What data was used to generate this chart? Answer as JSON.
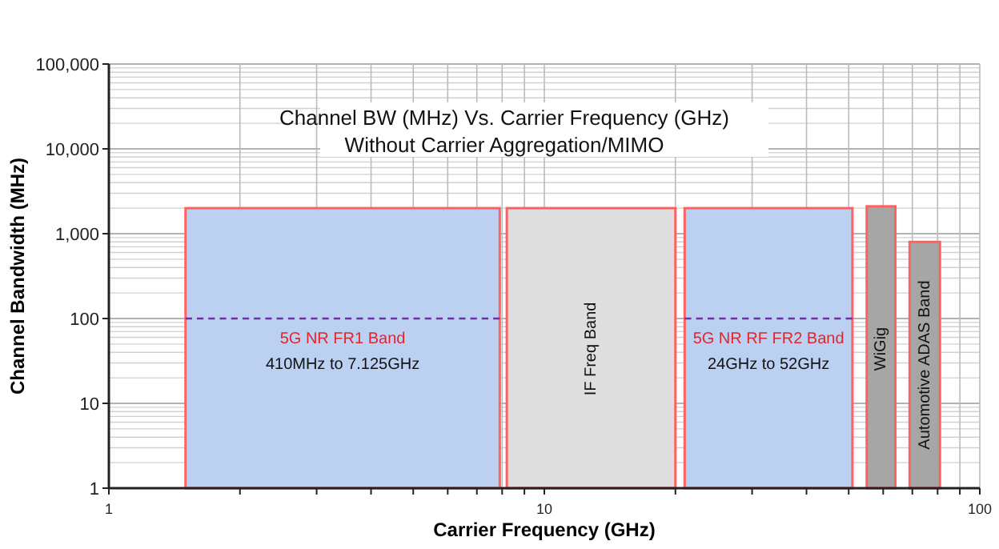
{
  "chart_data": {
    "type": "histogram",
    "title": "Channel BW (MHz) Vs. Carrier Frequency (GHz)",
    "subtitle": "Without Carrier Aggregation/MIMO",
    "xlabel": "Carrier Frequency (GHz)",
    "ylabel": "Channel Bandwidth (MHz)",
    "log": "xy",
    "grid": true,
    "xlim": [
      1,
      100
    ],
    "xticks": [
      1,
      {
        "value": 2,
        "label": null
      },
      {
        "value": 3,
        "label": null
      },
      {
        "value": 4,
        "label": null
      },
      {
        "value": 5,
        "label": null
      },
      {
        "value": 6,
        "label": null
      },
      {
        "value": 7,
        "label": null
      },
      {
        "value": 8,
        "label": null
      },
      {
        "value": 9,
        "label": null
      },
      10,
      {
        "value": 20,
        "label": null
      },
      {
        "value": 30,
        "label": null
      },
      {
        "value": 40,
        "label": null
      },
      {
        "value": 50,
        "label": null
      },
      {
        "value": 60,
        "label": null
      },
      {
        "value": 70,
        "label": null
      },
      {
        "value": 80,
        "label": null
      },
      {
        "value": 90,
        "label": null
      },
      100
    ],
    "ylim": [
      1,
      100000
    ],
    "yticks": [
      1,
      {
        "value": 2,
        "label": null
      },
      {
        "value": 3,
        "label": null
      },
      {
        "value": 4,
        "label": null
      },
      {
        "value": 5,
        "label": null
      },
      {
        "value": 6,
        "label": null
      },
      {
        "value": 7,
        "label": null
      },
      {
        "value": 8,
        "label": null
      },
      {
        "value": 9,
        "label": null
      },
      10,
      {
        "value": 20,
        "label": null
      },
      {
        "value": 30,
        "label": null
      },
      {
        "value": 40,
        "label": null
      },
      {
        "value": 50,
        "label": null
      },
      {
        "value": 60,
        "label": null
      },
      {
        "value": 70,
        "label": null
      },
      {
        "value": 80,
        "label": null
      },
      {
        "value": 90,
        "label": null
      },
      100,
      {
        "value": 200,
        "label": null
      },
      {
        "value": 300,
        "label": null
      },
      {
        "value": 400,
        "label": null
      },
      {
        "value": 500,
        "label": null
      },
      {
        "value": 600,
        "label": null
      },
      {
        "value": 700,
        "label": null
      },
      {
        "value": 800,
        "label": null
      },
      {
        "value": 900,
        "label": null
      },
      {
        "value": 1000,
        "label": "1,000"
      },
      {
        "value": 2000,
        "label": null
      },
      {
        "value": 3000,
        "label": null
      },
      {
        "value": 4000,
        "label": null
      },
      {
        "value": 5000,
        "label": null
      },
      {
        "value": 6000,
        "label": null
      },
      {
        "value": 7000,
        "label": null
      },
      {
        "value": 8000,
        "label": null
      },
      {
        "value": 9000,
        "label": null
      },
      {
        "value": 10000,
        "label": "10,000"
      },
      {
        "value": 20000,
        "label": null
      },
      {
        "value": 30000,
        "label": null
      },
      {
        "value": 40000,
        "label": null
      },
      {
        "value": 50000,
        "label": null
      },
      {
        "value": 60000,
        "label": null
      },
      {
        "value": 70000,
        "label": null
      },
      {
        "value": 80000,
        "label": null
      },
      {
        "value": 90000,
        "label": null
      },
      {
        "value": 100000,
        "label": "100,000"
      }
    ],
    "series": [
      {
        "bins": [
          1.5,
          7.9,
          8.2,
          20,
          21,
          51,
          55,
          64,
          69,
          81
        ],
        "values": [
          2000,
          null,
          2000,
          null,
          2000,
          null,
          2100,
          null,
          800
        ],
        "colors": [
          "#bcd0f2",
          null,
          "#dedede",
          null,
          "#bcd0f2",
          null,
          "#a6a6a6",
          null,
          "#a6a6a6"
        ]
      },
      {
        "type": "line",
        "x": [
          1.5,
          7.9
        ],
        "values": [
          100,
          100
        ],
        "color": "#7030a0",
        "line_style": "dashed"
      },
      {
        "type": "line",
        "x": [
          21,
          51
        ],
        "values": [
          100,
          100
        ],
        "color": "#7030a0",
        "line_style": "dashed"
      }
    ],
    "annotations": [
      "5G NR FR1 Band",
      "410MHz to 7.125GHz",
      "IF Freq Band",
      "5G NR RF FR2 Band",
      "24GHz to 52GHz",
      "WiGig",
      "Automotive ADAS Band"
    ]
  }
}
